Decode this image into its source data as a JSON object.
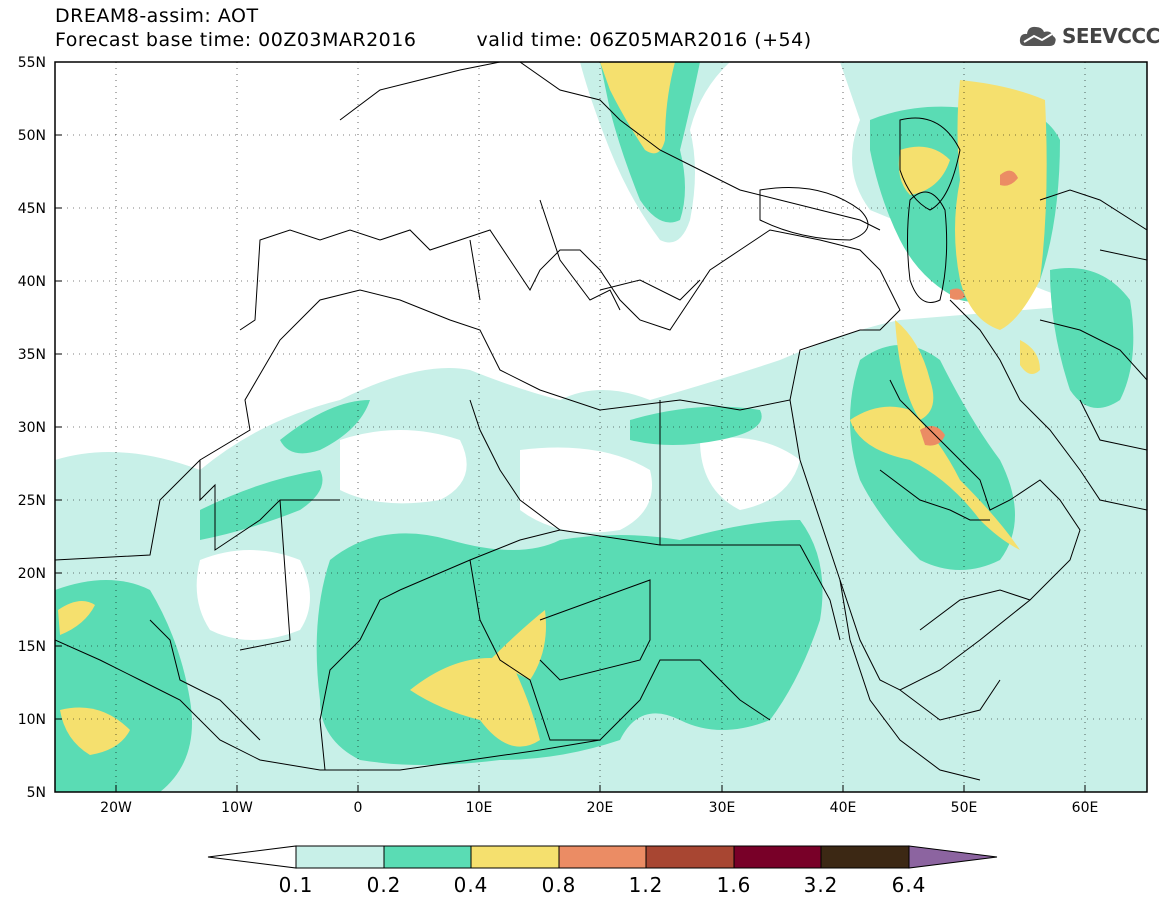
{
  "header": {
    "line1": "DREAM8-assim: AOT",
    "base_time": "Forecast base time: 00Z03MAR2016",
    "valid_time": "valid time: 06Z05MAR2016 (+54)"
  },
  "logo": {
    "text": "SEEVCCC",
    "icon": "cloud-logo-icon"
  },
  "map": {
    "lon_range": [
      -25,
      65
    ],
    "lat_range": [
      5,
      55
    ],
    "lat_labels": [
      "55N",
      "50N",
      "45N",
      "40N",
      "35N",
      "30N",
      "25N",
      "20N",
      "15N",
      "10N",
      "5N"
    ],
    "lon_labels": [
      "20W",
      "10W",
      "0",
      "10E",
      "20E",
      "30E",
      "40E",
      "50E",
      "60E"
    ]
  },
  "legend": {
    "thresholds": [
      "0.1",
      "0.2",
      "0.4",
      "0.8",
      "1.2",
      "1.6",
      "3.2",
      "6.4"
    ],
    "colors": [
      "#ffffff",
      "#c8f0e8",
      "#5adcb4",
      "#f5e06e",
      "#eb8c64",
      "#a84632",
      "#780028",
      "#3c2814",
      "#8c64a0"
    ]
  }
}
